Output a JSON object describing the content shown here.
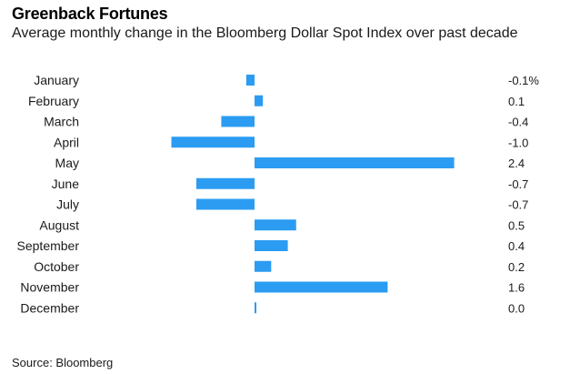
{
  "header": {
    "title": "Greenback Fortunes",
    "subtitle": "Average monthly change in the Bloomberg Dollar Spot Index over past decade"
  },
  "footer": {
    "source": "Source: Bloomberg"
  },
  "colors": {
    "bar": "#2b9cf2"
  },
  "chart_data": {
    "type": "bar",
    "orientation": "horizontal",
    "categories": [
      "January",
      "February",
      "March",
      "April",
      "May",
      "June",
      "July",
      "August",
      "September",
      "October",
      "November",
      "December"
    ],
    "values": [
      -0.1,
      0.1,
      -0.4,
      -1.0,
      2.4,
      -0.7,
      -0.7,
      0.5,
      0.4,
      0.2,
      1.6,
      0.0
    ],
    "value_labels": [
      "-0.1%",
      "0.1",
      "-0.4",
      "-1.0",
      "2.4",
      "-0.7",
      "-0.7",
      "0.5",
      "0.4",
      "0.2",
      "1.6",
      "0.0"
    ],
    "xlim": [
      -1.0,
      2.4
    ],
    "grid": false,
    "legend": "none"
  }
}
